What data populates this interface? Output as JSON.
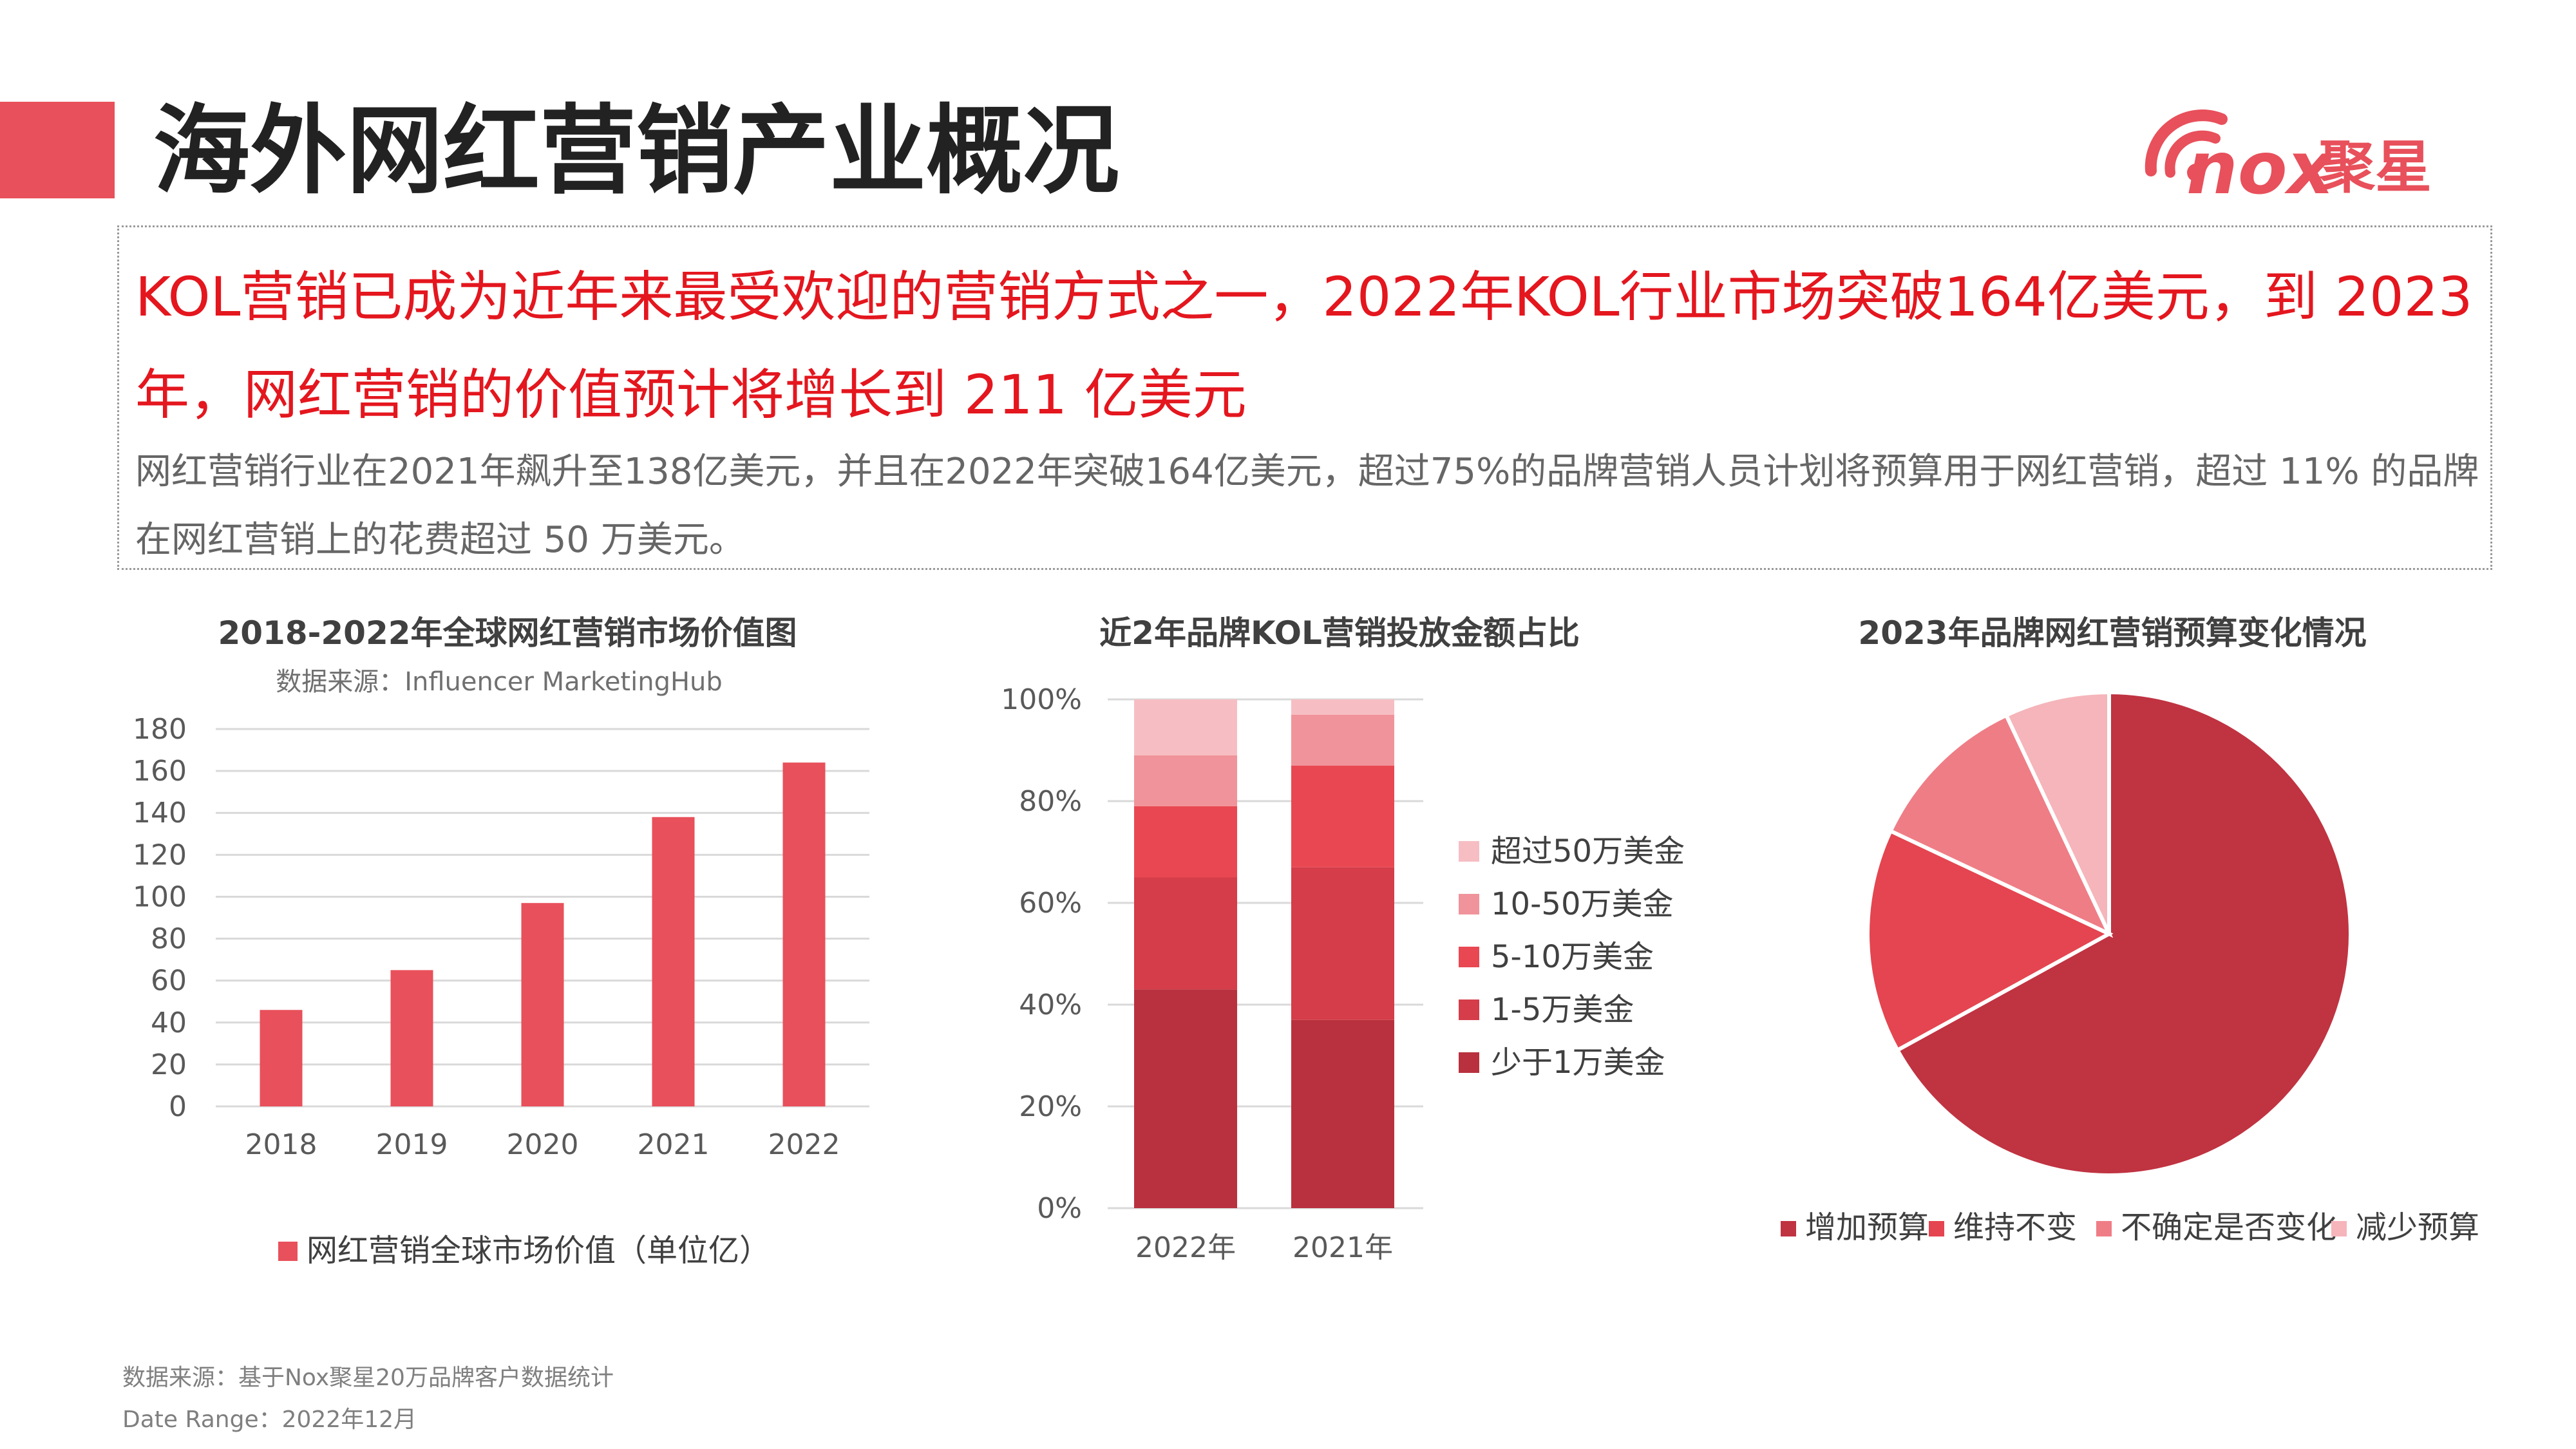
{
  "page": {
    "title": "海外网红营销产业概况",
    "headline": "KOL营销已成为近年来最受欢迎的营销方式之一，2022年KOL行业市场突破164亿美元，到 2023 年，网红营销的价值预计将增长到 211 亿美元",
    "subtext": "网红营销行业在2021年飙升至138亿美元，并且在2022年突破164亿美元，超过75%的品牌营销人员计划将预算用于网红营销，超过 11% 的品牌在网红营销上的花费超过 50 万美元。",
    "footer_source": "数据来源：基于Nox聚星20万品牌客户数据统计",
    "footer_range": "Date Range：2022年12月"
  },
  "logo": {
    "mark": "nox",
    "text": "聚星",
    "color": "#e8505b"
  },
  "colors": {
    "accent": "#e8505b",
    "headline": "#e4161e",
    "bar": "#e8505b"
  },
  "chart_data": [
    {
      "type": "bar",
      "title": "2018-2022年全球网红营销市场价值图",
      "subtitle": "数据来源：Influencer MarketingHub",
      "categories": [
        "2018",
        "2019",
        "2020",
        "2021",
        "2022"
      ],
      "series": [
        {
          "name": "网红营销全球市场价值（单位亿）",
          "values": [
            46,
            65,
            97,
            138,
            164
          ],
          "color": "#e8505b"
        }
      ],
      "ylim": [
        0,
        180
      ],
      "yticks": [
        0,
        20,
        40,
        60,
        80,
        100,
        120,
        140,
        160,
        180
      ],
      "grid": true,
      "legend": "bottom"
    },
    {
      "type": "bar",
      "stacked": true,
      "title": "近2年品牌KOL营销投放金额占比",
      "categories": [
        "2022年",
        "2021年"
      ],
      "series": [
        {
          "name": "少于1万美金",
          "values": [
            43,
            37
          ],
          "color": "#b9313e"
        },
        {
          "name": "1-5万美金",
          "values": [
            22,
            30
          ],
          "color": "#d43d49"
        },
        {
          "name": "5-10万美金",
          "values": [
            14,
            20
          ],
          "color": "#e94852"
        },
        {
          "name": "10-50万美金",
          "values": [
            10,
            10
          ],
          "color": "#f0939a"
        },
        {
          "name": "超过50万美金",
          "values": [
            11,
            3
          ],
          "color": "#f6bec3"
        }
      ],
      "ylim": [
        0,
        100
      ],
      "yticks": [
        "0%",
        "20%",
        "40%",
        "60%",
        "80%",
        "100%"
      ],
      "legend": "right"
    },
    {
      "type": "pie",
      "title": "2023年品牌网红营销预算变化情况",
      "labels": [
        "增加预算",
        "维持不变",
        "不确定是否变化",
        "减少预算"
      ],
      "values": [
        67,
        15,
        11,
        7
      ],
      "colors": [
        "#c03341",
        "#e44550",
        "#ef7d86",
        "#f5b5ba"
      ],
      "legend": "bottom"
    }
  ]
}
